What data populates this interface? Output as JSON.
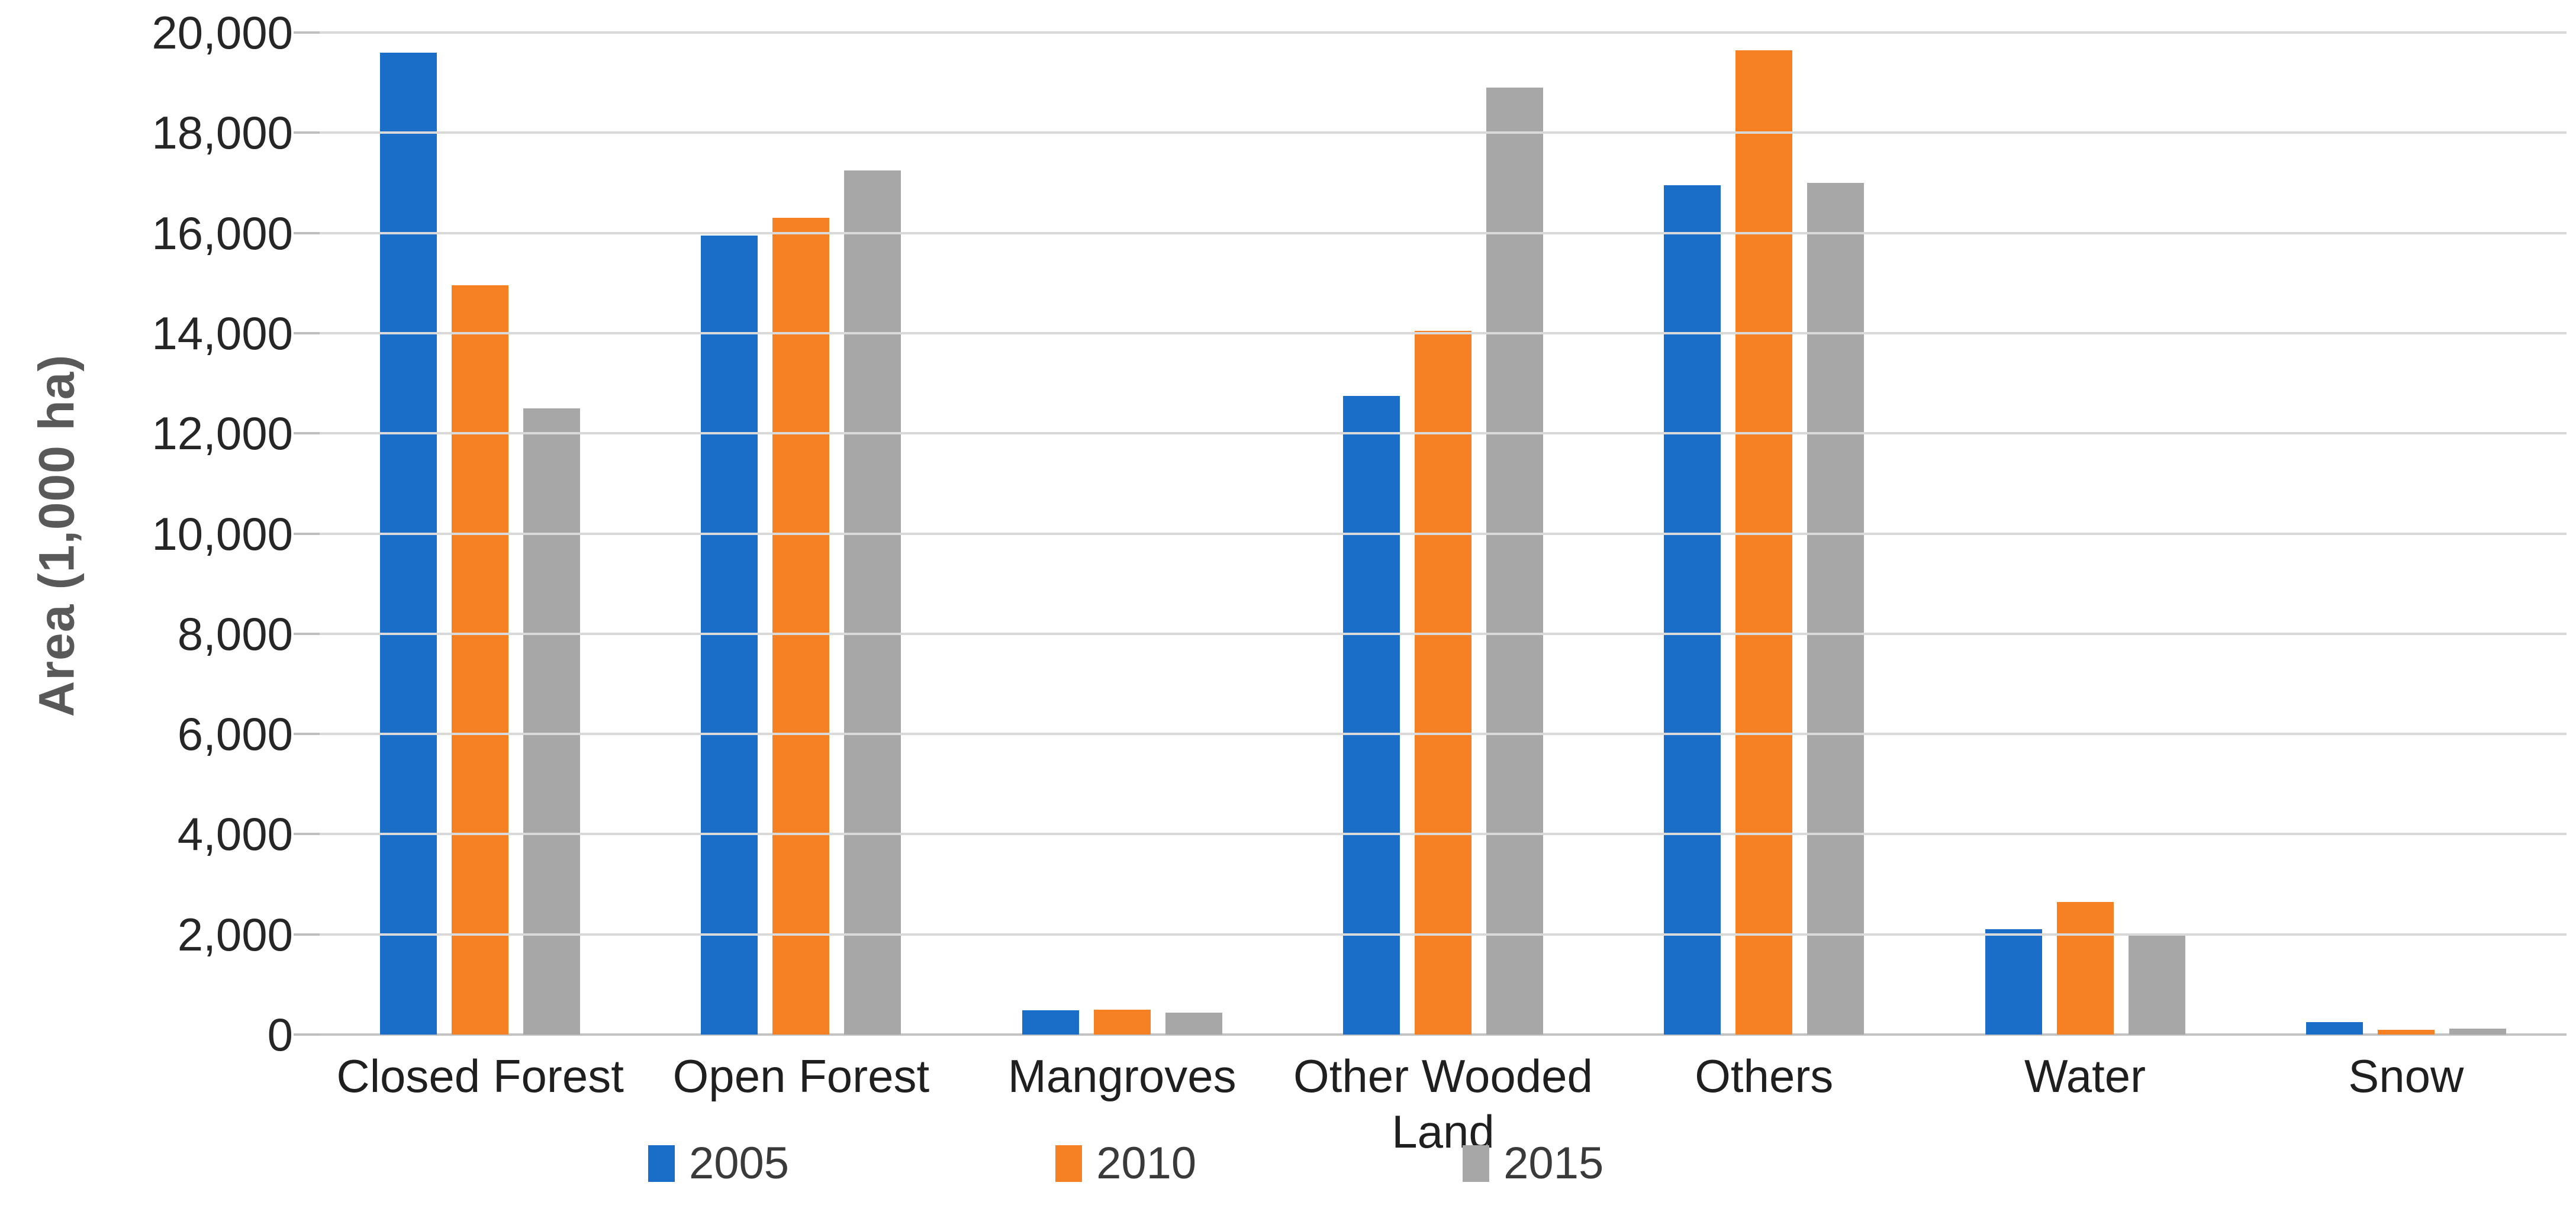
{
  "chart_data": {
    "type": "bar",
    "title": "",
    "xlabel": "",
    "ylabel": "Area (1,000 ha)",
    "ylim": [
      0,
      20000
    ],
    "y_tick_step": 2000,
    "y_tick_labels": [
      "0",
      "2,000",
      "4,000",
      "6,000",
      "8,000",
      "10,000",
      "12,000",
      "14,000",
      "16,000",
      "18,000",
      "20,000"
    ],
    "grid": true,
    "legend_position": "bottom",
    "categories": [
      "Closed Forest",
      "Open Forest",
      "Mangroves",
      "Other Wooded Land",
      "Others",
      "Water",
      "Snow"
    ],
    "series": [
      {
        "name": "2005",
        "color": "#1B6EC8",
        "values": [
          19600,
          15950,
          490,
          12750,
          16950,
          2100,
          250
        ]
      },
      {
        "name": "2010",
        "color": "#F68125",
        "values": [
          14950,
          16300,
          500,
          14050,
          19650,
          2650,
          100
        ]
      },
      {
        "name": "2015",
        "color": "#A7A7A7",
        "values": [
          12500,
          17250,
          440,
          18900,
          17000,
          2000,
          120
        ]
      }
    ]
  },
  "axis_colors": {
    "gridline": "#d9d9d9",
    "baseline": "#c3c3c3",
    "tick": "#bfbfbf"
  }
}
